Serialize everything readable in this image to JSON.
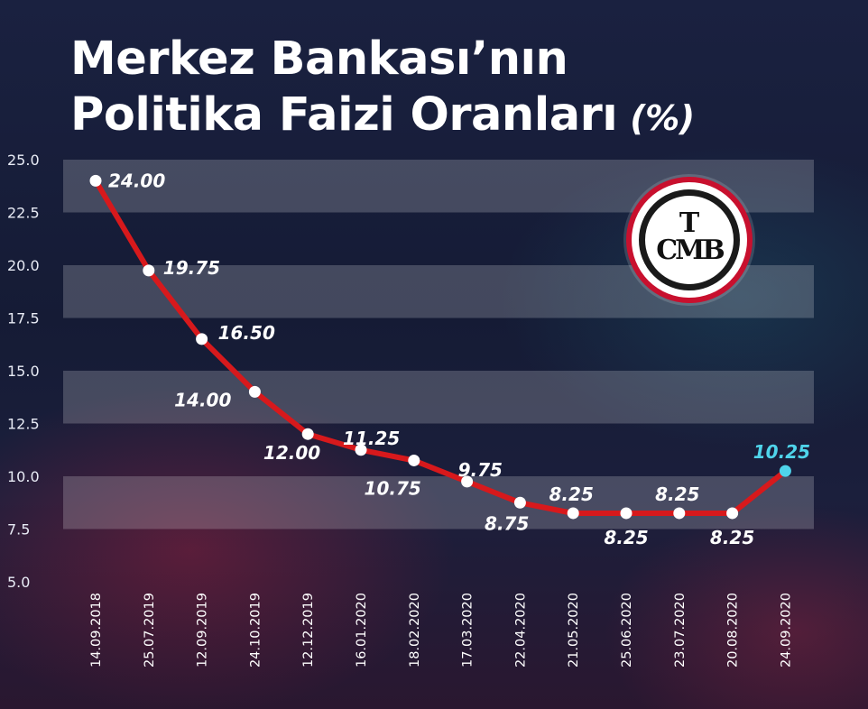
{
  "title": {
    "line1": "Merkez Bankası’nın",
    "line2": "Politika Faizi Oranları",
    "unit": "(%)"
  },
  "logo": {
    "text": "TCMB"
  },
  "colors": {
    "line": "#d7191c",
    "point": "#ffffff",
    "highlight": "#4fd4ea",
    "band": "#ffffff"
  },
  "chart_data": {
    "type": "line",
    "categories": [
      "14.09.2018",
      "25.07.2019",
      "12.09.2019",
      "24.10.2019",
      "12.12.2019",
      "16.01.2020",
      "18.02.2020",
      "17.03.2020",
      "22.04.2020",
      "21.05.2020",
      "25.06.2020",
      "23.07.2020",
      "20.08.2020",
      "24.09.2020"
    ],
    "series": [
      {
        "values": [
          24.0,
          19.75,
          16.5,
          14.0,
          12.0,
          11.25,
          10.75,
          9.75,
          8.75,
          8.25,
          8.25,
          8.25,
          8.25,
          10.25
        ]
      }
    ],
    "data_labels": [
      "24.00",
      "19.75",
      "16.50",
      "14.00",
      "12.00",
      "11.25",
      "10.75",
      "9.75",
      "8.75",
      "8.25",
      "8.25",
      "8.25",
      "8.25",
      "10.25"
    ],
    "y_ticks": [
      "25.0",
      "22.5",
      "20.0",
      "17.5",
      "15.0",
      "12.5",
      "10.0",
      "7.5",
      "5.0"
    ],
    "ylim": [
      5.0,
      25.0
    ],
    "highlight_index": 13,
    "grid": "alternating horizontal bands"
  }
}
